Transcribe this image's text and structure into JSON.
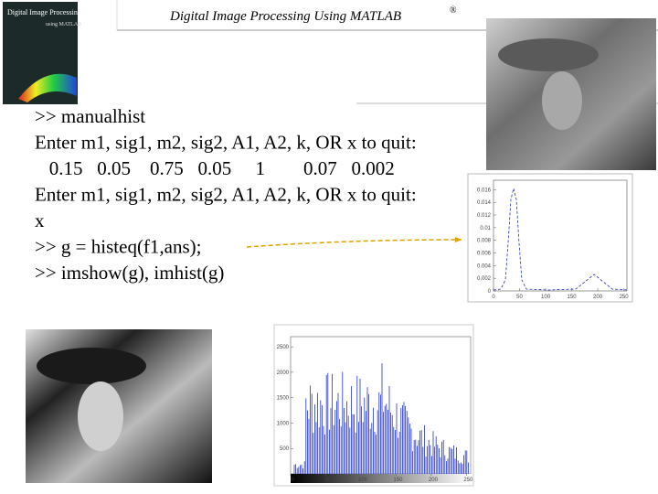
{
  "header": {
    "title": "Digital Image Processing Using MATLAB",
    "mark": "®"
  },
  "cover": {
    "title": "Digital Image Processing",
    "subtitle": "using MATLAB"
  },
  "console": {
    "lines": [
      ">> manualhist",
      "Enter m1, sig1, m2, sig2, A1, A2, k, OR x to quit:",
      "   0.15   0.05    0.75   0.05     1        0.07   0.002",
      "Enter m1, sig1, m2, sig2, A1, A2, k, OR x to quit:",
      "x",
      ">> g = histeq(f1,ans);",
      ">> imshow(g), imhist(g)"
    ]
  },
  "plot": {
    "xlim": [
      0,
      256
    ],
    "ylim": [
      0,
      0.0175
    ],
    "xticks": [
      0,
      50,
      100,
      150,
      200,
      250
    ],
    "yticks": [
      0,
      0.002,
      0.004,
      0.006,
      0.008,
      0.01,
      0.012,
      0.014,
      0.016
    ]
  },
  "histogram": {
    "xlim": [
      0,
      256
    ],
    "ylim": [
      0,
      2700
    ],
    "xticks": [
      0,
      50,
      100,
      150,
      200,
      250
    ],
    "yticks": [
      500,
      1000,
      1500,
      2000,
      2500
    ]
  }
}
